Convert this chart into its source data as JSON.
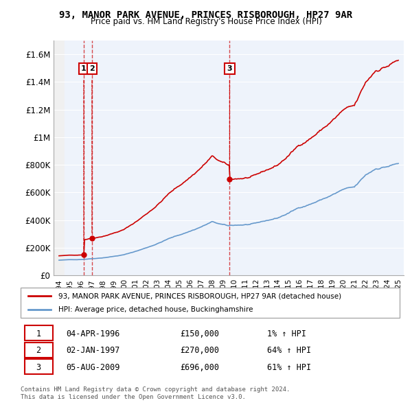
{
  "title": "93, MANOR PARK AVENUE, PRINCES RISBOROUGH, HP27 9AR",
  "subtitle": "Price paid vs. HM Land Registry's House Price Index (HPI)",
  "xlim": [
    1993.5,
    2025.5
  ],
  "ylim": [
    0,
    1700000
  ],
  "yticks": [
    0,
    200000,
    400000,
    600000,
    800000,
    1000000,
    1200000,
    1400000,
    1600000
  ],
  "ytick_labels": [
    "£0",
    "£200K",
    "£400K",
    "£600K",
    "£800K",
    "£1M",
    "£1.2M",
    "£1.4M",
    "£1.6M"
  ],
  "xticks": [
    1994,
    1995,
    1996,
    1997,
    1998,
    1999,
    2000,
    2001,
    2002,
    2003,
    2004,
    2005,
    2006,
    2007,
    2008,
    2009,
    2010,
    2011,
    2012,
    2013,
    2014,
    2015,
    2016,
    2017,
    2018,
    2019,
    2020,
    2021,
    2022,
    2023,
    2024,
    2025
  ],
  "sold_dates": [
    1996.26,
    1997.01,
    2009.59
  ],
  "sold_prices": [
    150000,
    270000,
    696000
  ],
  "sold_labels": [
    "1",
    "2",
    "3"
  ],
  "vline_dates": [
    1996.26,
    1997.01,
    2009.59
  ],
  "legend_line1": "93, MANOR PARK AVENUE, PRINCES RISBOROUGH, HP27 9AR (detached house)",
  "legend_line2": "HPI: Average price, detached house, Buckinghamshire",
  "table_data": [
    [
      "1",
      "04-APR-1996",
      "£150,000",
      "1% ↑ HPI"
    ],
    [
      "2",
      "02-JAN-1997",
      "£270,000",
      "64% ↑ HPI"
    ],
    [
      "3",
      "05-AUG-2009",
      "£696,000",
      "61% ↑ HPI"
    ]
  ],
  "footer": "Contains HM Land Registry data © Crown copyright and database right 2024.\nThis data is licensed under the Open Government Licence v3.0.",
  "red_color": "#cc0000",
  "blue_color": "#6699cc",
  "bg_hatch_color": "#dddddd",
  "sold_dot_color": "#cc0000"
}
